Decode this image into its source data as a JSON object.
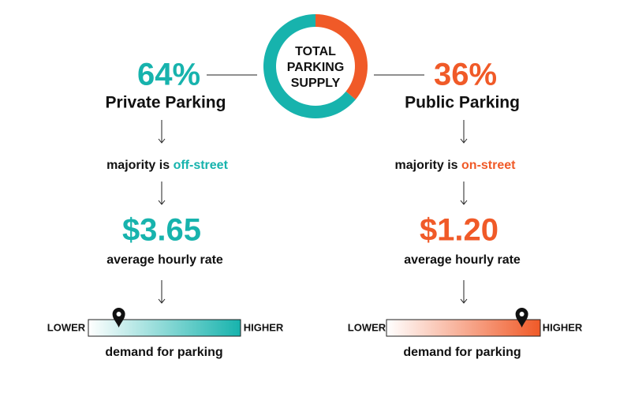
{
  "center": {
    "lines": [
      "TOTAL",
      "PARKING",
      "SUPPLY"
    ]
  },
  "left": {
    "share": 64,
    "share_label": "64%",
    "title": "Private Parking",
    "majority_prefix": "majority is",
    "majority_type": "off-street",
    "rate": "$3.65",
    "rate_caption": "average hourly rate",
    "scale_low": "LOWER",
    "scale_high": "HIGHER",
    "scale_caption": "demand for parking",
    "demand": 0.2
  },
  "right": {
    "share": 36,
    "share_label": "36%",
    "title": "Public Parking",
    "majority_prefix": "majority is",
    "majority_type": "on-street",
    "rate": "$1.20",
    "rate_caption": "average hourly rate",
    "scale_low": "LOWER",
    "scale_high": "HIGHER",
    "scale_caption": "demand for parking",
    "demand": 0.88
  }
}
